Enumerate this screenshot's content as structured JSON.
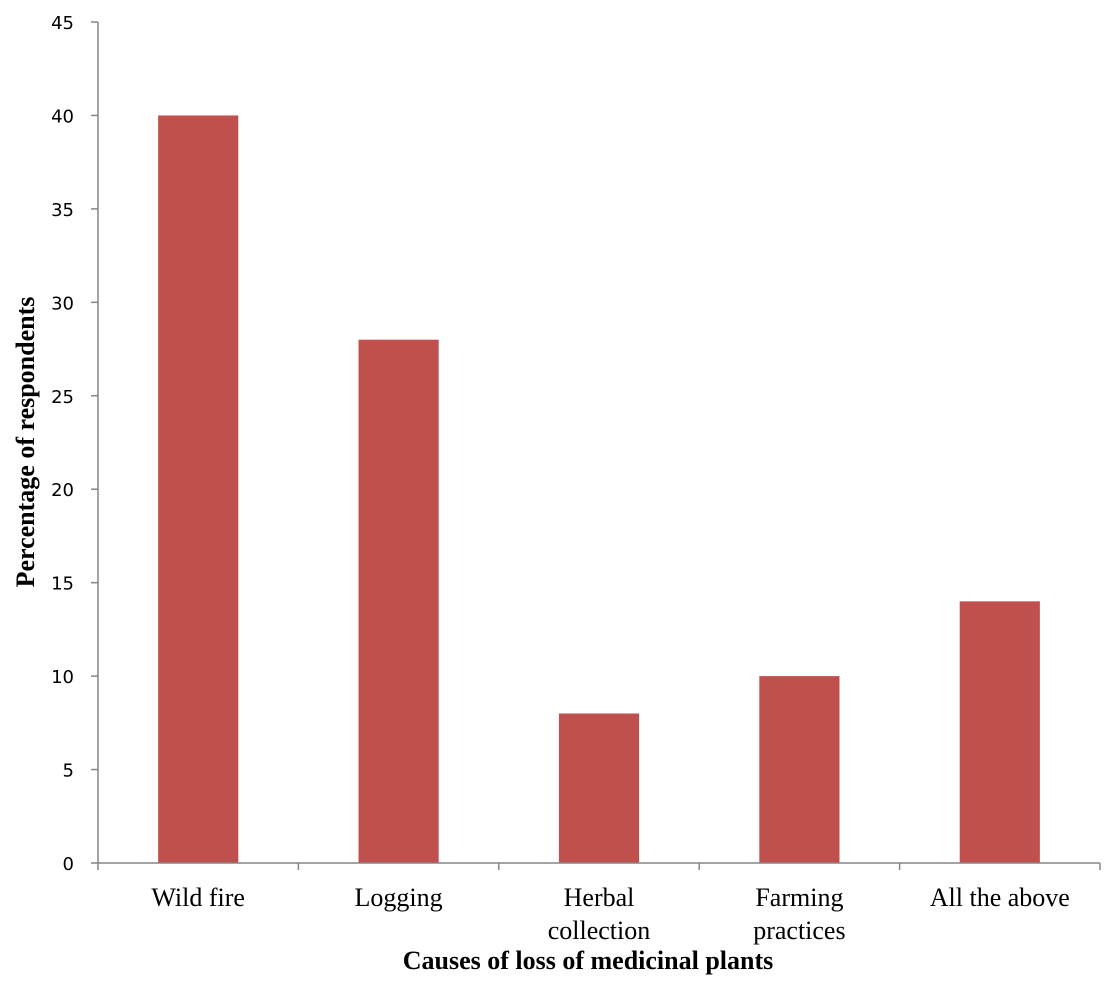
{
  "chart_data": {
    "type": "bar",
    "title": "",
    "xlabel": "Causes of loss of medicinal plants",
    "ylabel": "Percentage of respondents",
    "categories": [
      [
        "Wild fire"
      ],
      [
        "Logging"
      ],
      [
        "Herbal",
        "collection"
      ],
      [
        "Farming",
        "practices"
      ],
      [
        "All the above"
      ]
    ],
    "values": [
      40,
      28,
      8,
      10,
      14
    ],
    "ylim": [
      0,
      45
    ],
    "ytick_step": 5,
    "yticks": [
      "0",
      "5",
      "10",
      "15",
      "20",
      "25",
      "30",
      "35",
      "40",
      "45"
    ],
    "grid": false,
    "legend": "none",
    "bar_color": "#c0504d",
    "axis_color": "#868686"
  }
}
